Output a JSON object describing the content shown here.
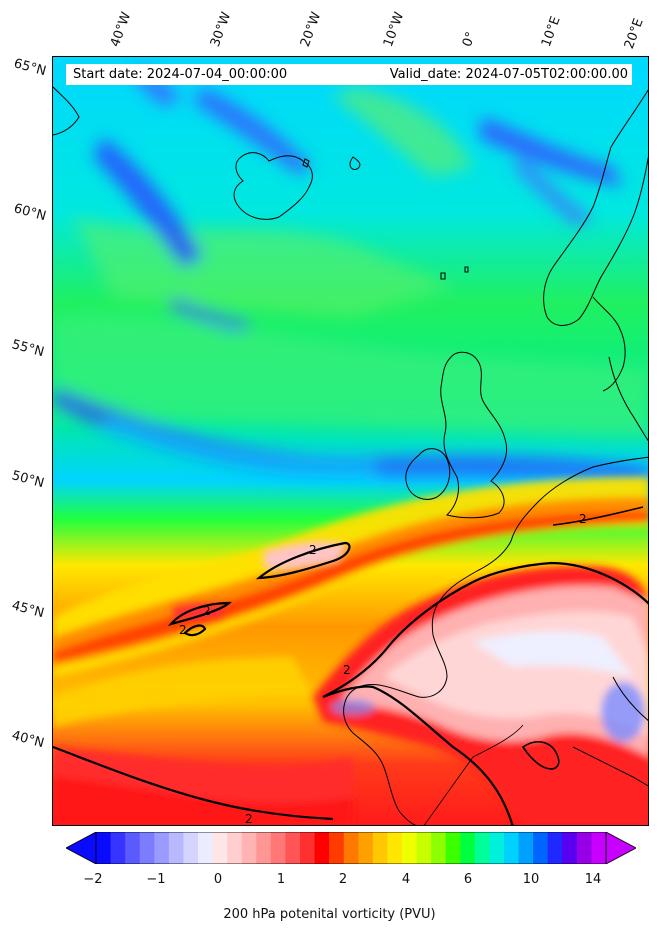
{
  "map": {
    "start_date": "Start date: 2024-07-04_00:00:00",
    "valid_date": "Valid_date: 2024-07-05T02:00:00.00",
    "lon_labels": [
      "40°W",
      "30°W",
      "20°W",
      "10°W",
      "0°",
      "10°E",
      "20°E"
    ],
    "lat_labels": [
      "65°N",
      "60°N",
      "55°N",
      "50°N",
      "45°N",
      "40°N"
    ],
    "contour_label": "2",
    "colorbar": {
      "ticks": [
        "−2",
        "−1",
        "0",
        "1",
        "2",
        "4",
        "6",
        "10",
        "14"
      ],
      "label": "200 hPa potenital vorticity (PVU)",
      "colors": [
        "#0a0aff",
        "#3535ff",
        "#5a5aff",
        "#7c7cff",
        "#9a9aff",
        "#b8b8ff",
        "#d4d4ff",
        "#ececff",
        "#ffe6e6",
        "#ffcfcf",
        "#ffb3b3",
        "#ff9595",
        "#ff7878",
        "#ff5555",
        "#ff3030",
        "#ff0000",
        "#ff3c00",
        "#ff7800",
        "#ffa000",
        "#ffc800",
        "#ffe600",
        "#f0ff00",
        "#c8ff00",
        "#8cff00",
        "#3cff00",
        "#00ff3c",
        "#00ff9a",
        "#00f0dc",
        "#00d2ff",
        "#00a0ff",
        "#0064ff",
        "#1e28ff",
        "#5a00f0",
        "#9600e6",
        "#c800ff"
      ]
    }
  }
}
